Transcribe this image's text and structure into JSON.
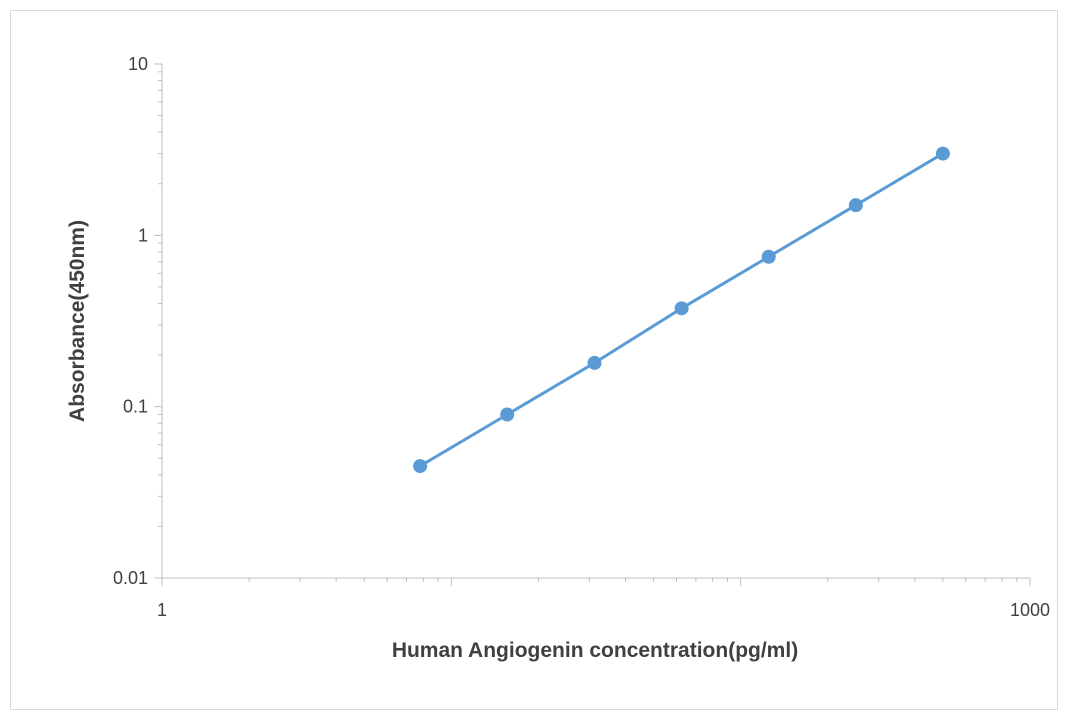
{
  "chart_data": {
    "type": "line",
    "title": "",
    "xlabel": "Human Angiogenin concentration(pg/ml)",
    "ylabel": "Absorbance(450nm)",
    "xscale": "log",
    "yscale": "log",
    "xlim": [
      1,
      1000
    ],
    "ylim": [
      0.01,
      10
    ],
    "x_tick_labels": [
      "1",
      "1000"
    ],
    "y_tick_labels": [
      "0.01",
      "0.1",
      "1",
      "10"
    ],
    "grid": false,
    "legend": "none",
    "markers": true,
    "series": [
      {
        "color": "#5b9bd5",
        "x": [
          7.8,
          15.6,
          31.25,
          62.5,
          125,
          250,
          500
        ],
        "y": [
          0.045,
          0.09,
          0.18,
          0.375,
          0.75,
          1.5,
          3.0
        ]
      }
    ]
  }
}
